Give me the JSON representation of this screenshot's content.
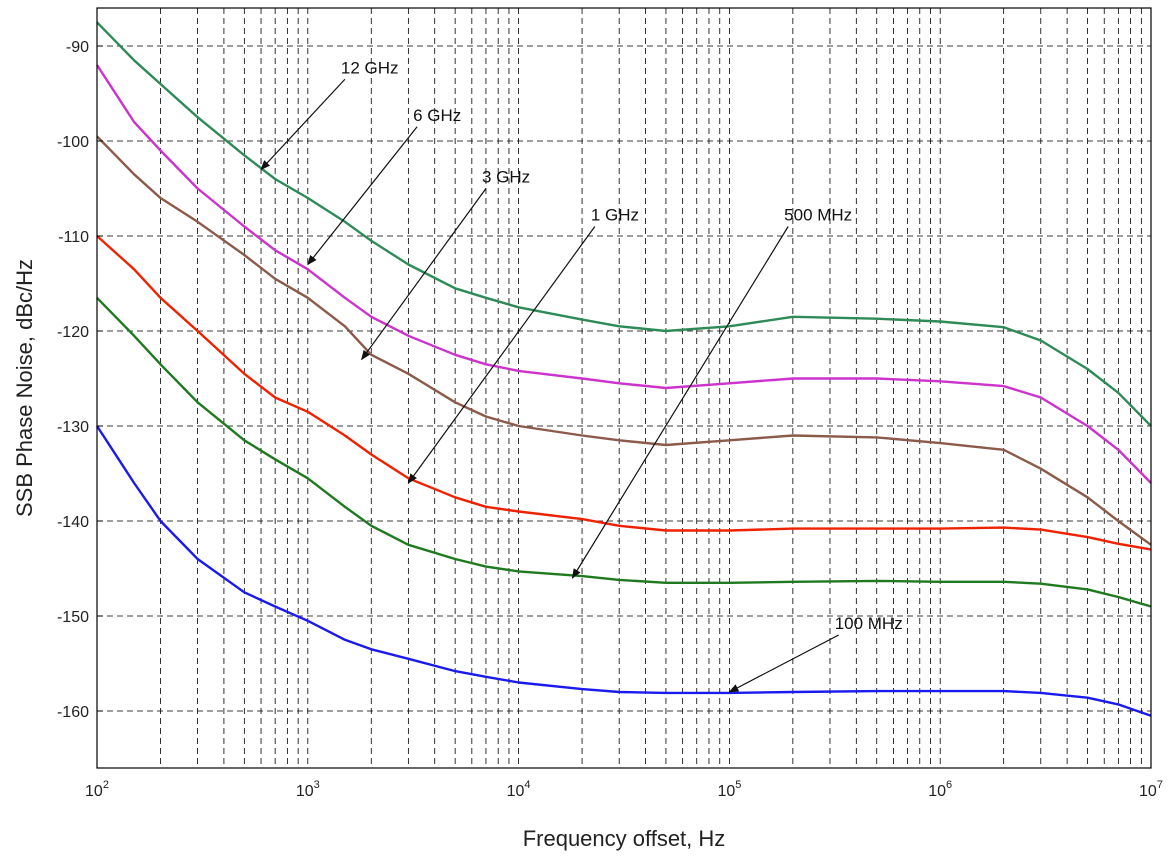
{
  "chart_data": {
    "type": "line",
    "title": "",
    "xlabel": "Frequency offset, Hz",
    "ylabel": "SSB Phase Noise, dBc/Hz",
    "xscale": "log",
    "xlim": [
      100,
      10000000
    ],
    "ylim": [
      -166,
      -86
    ],
    "grid": true,
    "grid_style": "dashed",
    "legend": "none",
    "x_ticks": [
      {
        "value": 100,
        "base": "10",
        "exp": "2"
      },
      {
        "value": 1000,
        "base": "10",
        "exp": "3"
      },
      {
        "value": 10000,
        "base": "10",
        "exp": "4"
      },
      {
        "value": 100000,
        "base": "10",
        "exp": "5"
      },
      {
        "value": 1000000,
        "base": "10",
        "exp": "6"
      },
      {
        "value": 10000000,
        "base": "10",
        "exp": "7"
      }
    ],
    "y_ticks": [
      {
        "value": -90,
        "label": "-90"
      },
      {
        "value": -100,
        "label": "-100"
      },
      {
        "value": -110,
        "label": "-110"
      },
      {
        "value": -120,
        "label": "-120"
      },
      {
        "value": -130,
        "label": "-130"
      },
      {
        "value": -140,
        "label": "-140"
      },
      {
        "value": -150,
        "label": "-150"
      },
      {
        "value": -160,
        "label": "-160"
      }
    ],
    "series": [
      {
        "color": "#2e8b57",
        "x": [
          100,
          150,
          200,
          300,
          500,
          700,
          1000,
          1500,
          2000,
          3000,
          5000,
          7000,
          10000,
          20000,
          30000,
          50000,
          100000,
          200000,
          500000,
          1000000,
          2000000,
          3000000,
          5000000,
          7000000,
          10000000
        ],
        "y": [
          -87.5,
          -91.5,
          -94,
          -97.5,
          -101.5,
          -104,
          -106,
          -108.5,
          -110.5,
          -113,
          -115.5,
          -116.5,
          -117.5,
          -118.8,
          -119.5,
          -120,
          -119.5,
          -118.5,
          -118.7,
          -119,
          -119.6,
          -121,
          -124,
          -126.5,
          -130
        ]
      },
      {
        "color": "#cc33cc",
        "x": [
          100,
          150,
          200,
          300,
          500,
          700,
          1000,
          1500,
          2000,
          3000,
          5000,
          7000,
          10000,
          20000,
          30000,
          50000,
          100000,
          200000,
          500000,
          1000000,
          2000000,
          3000000,
          5000000,
          7000000,
          10000000
        ],
        "y": [
          -92,
          -98,
          -101,
          -105,
          -109,
          -111.5,
          -113.5,
          -116.5,
          -118.5,
          -120.5,
          -122.5,
          -123.5,
          -124.2,
          -125,
          -125.5,
          -126,
          -125.5,
          -125,
          -125,
          -125.3,
          -125.8,
          -127,
          -130,
          -132.5,
          -136
        ]
      },
      {
        "color": "#8b5a4a",
        "x": [
          100,
          150,
          200,
          300,
          500,
          700,
          1000,
          1500,
          2000,
          3000,
          5000,
          7000,
          10000,
          20000,
          30000,
          50000,
          100000,
          200000,
          500000,
          1000000,
          2000000,
          3000000,
          5000000,
          7000000,
          10000000
        ],
        "y": [
          -99.5,
          -103.5,
          -106,
          -108.5,
          -112,
          -114.5,
          -116.5,
          -119.5,
          -122.5,
          -124.5,
          -127.5,
          -129,
          -130,
          -131,
          -131.5,
          -132,
          -131.5,
          -131,
          -131.2,
          -131.8,
          -132.5,
          -134.5,
          -137.5,
          -140,
          -142.5
        ]
      },
      {
        "color": "#ee2200",
        "x": [
          100,
          150,
          200,
          300,
          500,
          700,
          1000,
          1500,
          2000,
          3000,
          5000,
          7000,
          10000,
          20000,
          30000,
          50000,
          100000,
          200000,
          500000,
          1000000,
          2000000,
          3000000,
          5000000,
          7000000,
          10000000
        ],
        "y": [
          -110,
          -113.5,
          -116.5,
          -120,
          -124.5,
          -127,
          -128.5,
          -131,
          -133,
          -135.5,
          -137.5,
          -138.5,
          -139,
          -139.8,
          -140.5,
          -141,
          -141,
          -140.8,
          -140.8,
          -140.8,
          -140.7,
          -140.9,
          -141.7,
          -142.4,
          -143
        ]
      },
      {
        "color": "#1f7a1f",
        "x": [
          100,
          150,
          200,
          300,
          500,
          700,
          1000,
          1500,
          2000,
          3000,
          5000,
          7000,
          10000,
          20000,
          30000,
          50000,
          100000,
          200000,
          500000,
          1000000,
          2000000,
          3000000,
          5000000,
          7000000,
          10000000
        ],
        "y": [
          -116.5,
          -120.5,
          -123.5,
          -127.5,
          -131.5,
          -133.5,
          -135.5,
          -138.5,
          -140.5,
          -142.5,
          -144,
          -144.8,
          -145.3,
          -145.8,
          -146.2,
          -146.5,
          -146.5,
          -146.4,
          -146.3,
          -146.4,
          -146.4,
          -146.6,
          -147.2,
          -148,
          -149
        ]
      },
      {
        "color": "#1a1aee",
        "x": [
          100,
          150,
          200,
          300,
          500,
          700,
          1000,
          1500,
          2000,
          3000,
          5000,
          7000,
          10000,
          20000,
          30000,
          50000,
          100000,
          200000,
          500000,
          1000000,
          2000000,
          3000000,
          5000000,
          7000000,
          10000000
        ],
        "y": [
          -130,
          -136,
          -140,
          -144,
          -147.5,
          -149,
          -150.5,
          -152.5,
          -153.5,
          -154.5,
          -155.8,
          -156.4,
          -157,
          -157.7,
          -158,
          -158.1,
          -158.1,
          -158,
          -157.9,
          -157.9,
          -157.9,
          -158.1,
          -158.6,
          -159.3,
          -160.5
        ]
      }
    ],
    "annotations": [
      {
        "text": "12 GHz",
        "label_x": 1500,
        "label_y": -93.5,
        "tip_x": 600,
        "tip_y": -103
      },
      {
        "text": "6 GHz",
        "label_x": 3300,
        "label_y": -98.5,
        "tip_x": 1000,
        "tip_y": -113
      },
      {
        "text": "3 GHz",
        "label_x": 7000,
        "label_y": -105,
        "tip_x": 1800,
        "tip_y": -123
      },
      {
        "text": "1 GHz",
        "label_x": 23000,
        "label_y": -109,
        "tip_x": 3000,
        "tip_y": -136
      },
      {
        "text": "500 MHz",
        "label_x": 190000,
        "label_y": -109,
        "tip_x": 18000,
        "tip_y": -146
      },
      {
        "text": "100 MHz",
        "label_x": 330000,
        "label_y": -152,
        "tip_x": 100000,
        "tip_y": -158
      }
    ]
  }
}
